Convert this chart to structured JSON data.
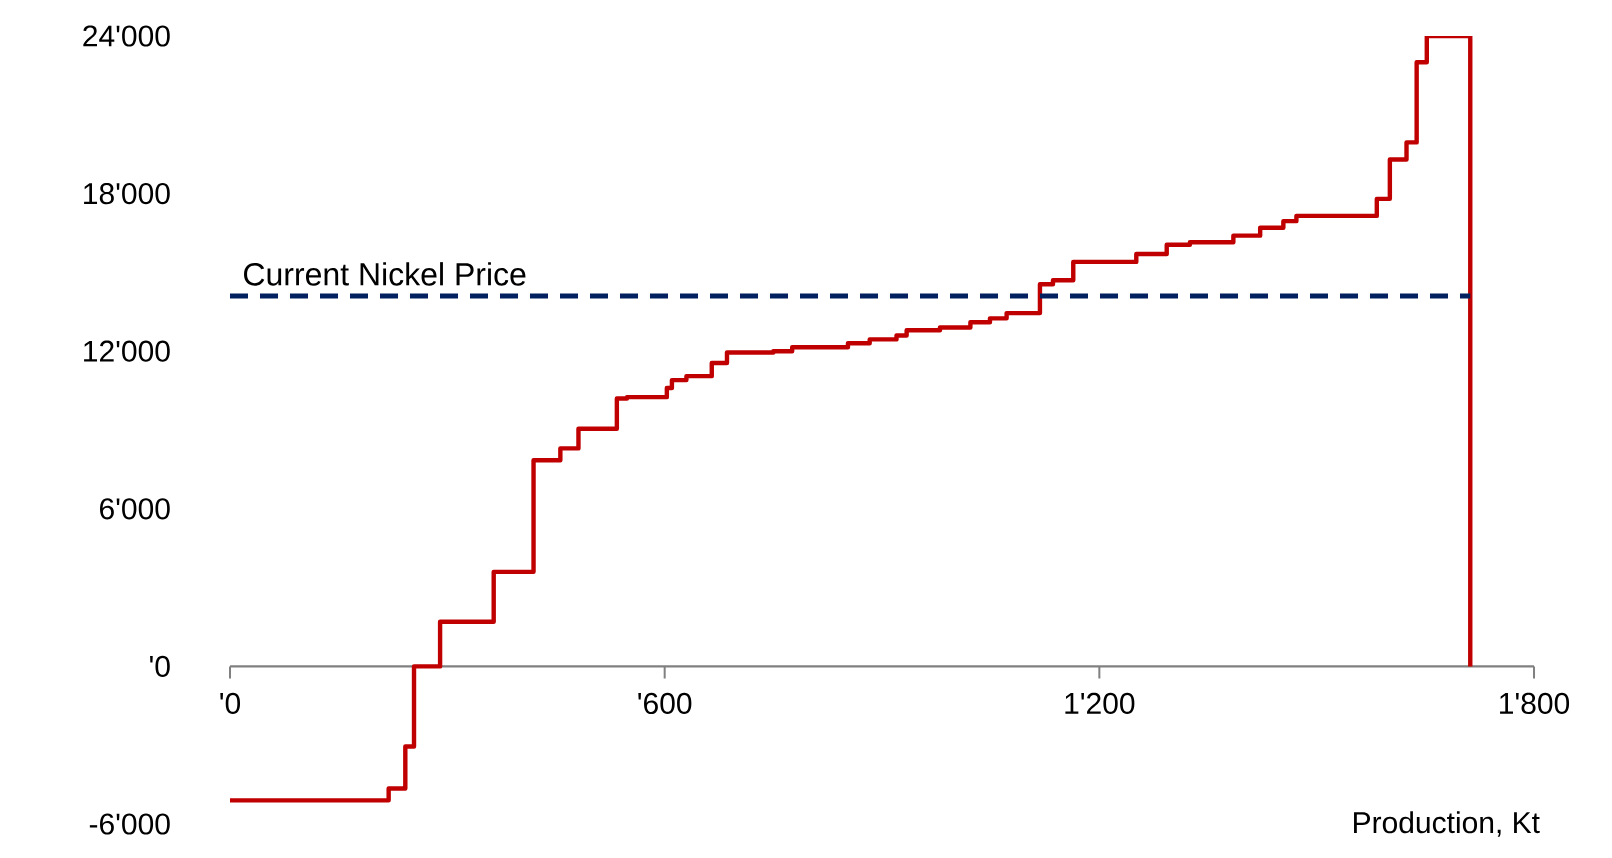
{
  "chart_data": {
    "type": "step",
    "xlabel": "Production, Kt",
    "x": [
      0,
      219,
      242,
      254,
      290,
      364,
      419,
      456,
      481,
      534,
      548,
      603,
      610,
      630,
      665,
      686,
      750,
      776,
      853,
      883,
      920,
      934,
      980,
      1022,
      1049,
      1072,
      1118,
      1136,
      1164,
      1251,
      1293,
      1325,
      1385,
      1422,
      1454,
      1472,
      1583,
      1601,
      1624,
      1638,
      1652,
      1712
    ],
    "series": [
      {
        "color": "#c00000",
        "values": [
          -5100,
          -4650,
          -3050,
          0,
          1700,
          3600,
          7850,
          8300,
          9050,
          10200,
          10250,
          10600,
          10900,
          11050,
          11550,
          11950,
          12000,
          12150,
          12300,
          12450,
          12600,
          12800,
          12900,
          13100,
          13250,
          13450,
          14550,
          14700,
          15400,
          15700,
          16050,
          16150,
          16400,
          16700,
          16950,
          17150,
          17800,
          19300,
          19950,
          23000,
          24000,
          0
        ]
      }
    ],
    "xlim": [
      0,
      1800
    ],
    "ylim": [
      -6000,
      24000
    ],
    "xticks": [
      {
        "value": 0,
        "label": "'0"
      },
      {
        "value": 600,
        "label": "'600"
      },
      {
        "value": 1200,
        "label": "1'200"
      },
      {
        "value": 1800,
        "label": "1'800"
      }
    ],
    "yticks": [
      {
        "value": -6000,
        "label": "-6'000"
      },
      {
        "value": 0,
        "label": "'0"
      },
      {
        "value": 6000,
        "label": "6'000"
      },
      {
        "value": 12000,
        "label": "12'000"
      },
      {
        "value": 18000,
        "label": "18'000"
      },
      {
        "value": 24000,
        "label": "24'000"
      }
    ],
    "ref_lines": [
      {
        "axis": "y",
        "value": 14100,
        "label": "Current Nickel Price",
        "color": "#002060",
        "line_style": "dashed"
      }
    ]
  }
}
